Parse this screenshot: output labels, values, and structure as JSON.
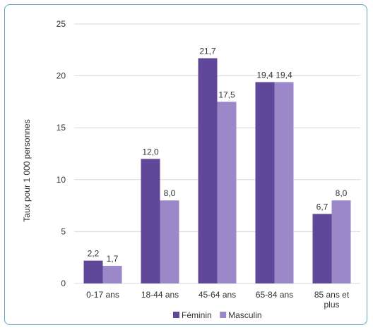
{
  "chart_data": {
    "type": "bar",
    "categories": [
      "0-17 ans",
      "18-44 ans",
      "45-64 ans",
      "65-84 ans",
      "85 ans et plus"
    ],
    "series": [
      {
        "name": "Féminin",
        "values": [
          2.2,
          12.0,
          21.7,
          19.4,
          6.7
        ],
        "labels": [
          "2,2",
          "12,0",
          "21,7",
          "19,4",
          "6,7"
        ]
      },
      {
        "name": "Masculin",
        "values": [
          1.7,
          8.0,
          17.5,
          19.4,
          8.0
        ],
        "labels": [
          "1,7",
          "8,0",
          "17,5",
          "19,4",
          "8,0"
        ]
      }
    ],
    "title": "",
    "xlabel": "",
    "ylabel": "Taux pour 1 000 personnes",
    "ylim": [
      0,
      25
    ],
    "yticks": [
      0,
      5,
      10,
      15,
      20,
      25
    ],
    "grid": true,
    "legend_position": "bottom",
    "colors": {
      "Féminin": "#60479a",
      "Masculin": "#9b88c9"
    }
  }
}
